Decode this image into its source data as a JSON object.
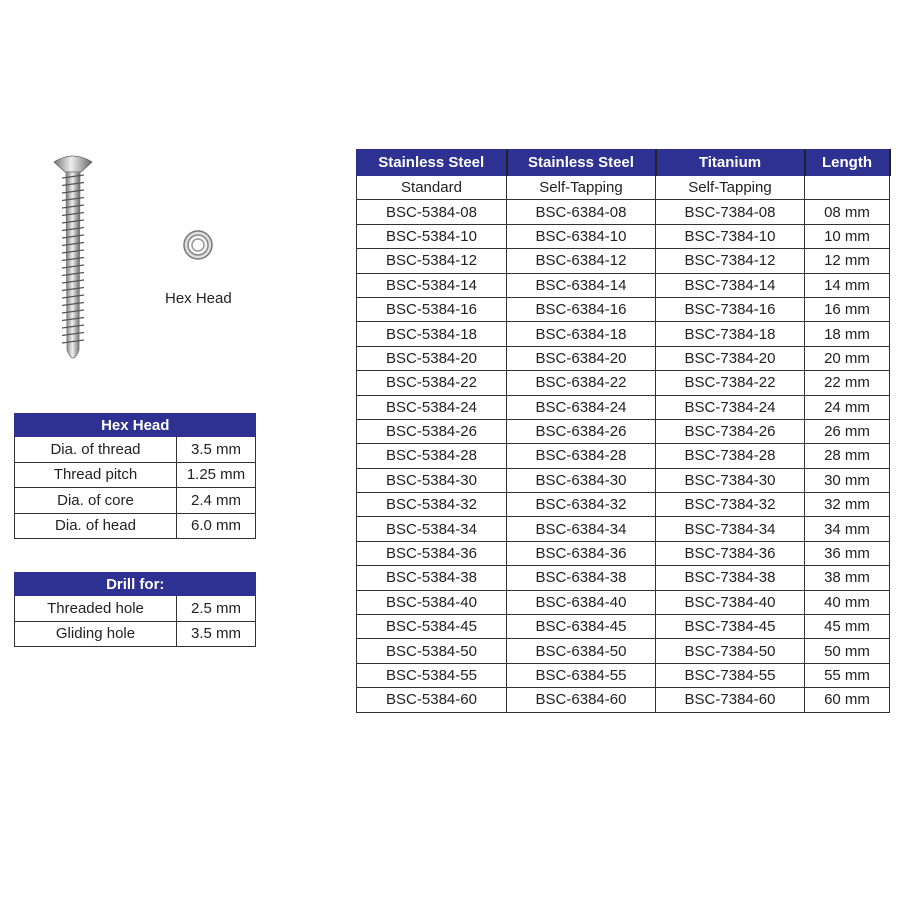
{
  "image_caption": "Hex Head",
  "main_table": {
    "headers": [
      "Stainless Steel",
      "Stainless Steel",
      "Titanium",
      "Length"
    ],
    "subheaders": [
      "Standard",
      "Self-Tapping",
      "Self-Tapping",
      ""
    ],
    "rows": [
      [
        "BSC-5384-08",
        "BSC-6384-08",
        "BSC-7384-08",
        "08 mm"
      ],
      [
        "BSC-5384-10",
        "BSC-6384-10",
        "BSC-7384-10",
        "10 mm"
      ],
      [
        "BSC-5384-12",
        "BSC-6384-12",
        "BSC-7384-12",
        "12 mm"
      ],
      [
        "BSC-5384-14",
        "BSC-6384-14",
        "BSC-7384-14",
        "14 mm"
      ],
      [
        "BSC-5384-16",
        "BSC-6384-16",
        "BSC-7384-16",
        "16 mm"
      ],
      [
        "BSC-5384-18",
        "BSC-6384-18",
        "BSC-7384-18",
        "18 mm"
      ],
      [
        "BSC-5384-20",
        "BSC-6384-20",
        "BSC-7384-20",
        "20 mm"
      ],
      [
        "BSC-5384-22",
        "BSC-6384-22",
        "BSC-7384-22",
        "22 mm"
      ],
      [
        "BSC-5384-24",
        "BSC-6384-24",
        "BSC-7384-24",
        "24 mm"
      ],
      [
        "BSC-5384-26",
        "BSC-6384-26",
        "BSC-7384-26",
        "26 mm"
      ],
      [
        "BSC-5384-28",
        "BSC-6384-28",
        "BSC-7384-28",
        "28 mm"
      ],
      [
        "BSC-5384-30",
        "BSC-6384-30",
        "BSC-7384-30",
        "30 mm"
      ],
      [
        "BSC-5384-32",
        "BSC-6384-32",
        "BSC-7384-32",
        "32 mm"
      ],
      [
        "BSC-5384-34",
        "BSC-6384-34",
        "BSC-7384-34",
        "34 mm"
      ],
      [
        "BSC-5384-36",
        "BSC-6384-36",
        "BSC-7384-36",
        "36 mm"
      ],
      [
        "BSC-5384-38",
        "BSC-6384-38",
        "BSC-7384-38",
        "38 mm"
      ],
      [
        "BSC-5384-40",
        "BSC-6384-40",
        "BSC-7384-40",
        "40 mm"
      ],
      [
        "BSC-5384-45",
        "BSC-6384-45",
        "BSC-7384-45",
        "45 mm"
      ],
      [
        "BSC-5384-50",
        "BSC-6384-50",
        "BSC-7384-50",
        "50 mm"
      ],
      [
        "BSC-5384-55",
        "BSC-6384-55",
        "BSC-7384-55",
        "55 mm"
      ],
      [
        "BSC-5384-60",
        "BSC-6384-60",
        "BSC-7384-60",
        "60 mm"
      ]
    ]
  },
  "spec_table": {
    "title": "Hex Head",
    "rows": [
      [
        "Dia. of thread",
        "3.5 mm"
      ],
      [
        "Thread pitch",
        "1.25 mm"
      ],
      [
        "Dia. of core",
        "2.4 mm"
      ],
      [
        "Dia. of head",
        "6.0 mm"
      ]
    ]
  },
  "drill_table": {
    "title": "Drill for:",
    "rows": [
      [
        "Threaded hole",
        "2.5 mm"
      ],
      [
        "Gliding hole",
        "3.5 mm"
      ]
    ]
  },
  "colors": {
    "header_bg": "#2e3192",
    "header_text": "#ffffff"
  }
}
